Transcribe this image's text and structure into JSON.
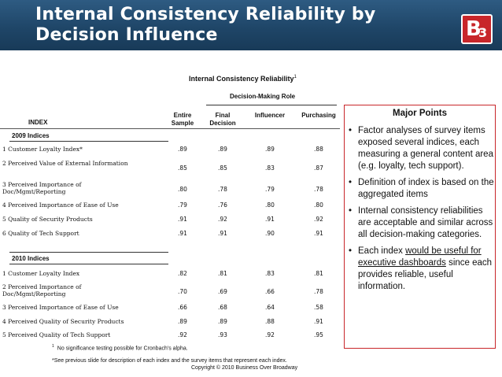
{
  "header": {
    "title_line1": "Internal Consistency Reliability by",
    "title_line2": "Decision Influence",
    "logo_big": "B",
    "logo_small": "3"
  },
  "table": {
    "title": "Internal Consistency Reliability",
    "title_footnote_mark": "1",
    "group_header": "Decision-Making Role",
    "index_header": "INDEX",
    "columns": [
      {
        "line1": "Entire",
        "line2": "Sample"
      },
      {
        "line1": "Final",
        "line2": "Decision"
      },
      {
        "line1": "",
        "line2": "Influencer"
      },
      {
        "line1": "",
        "line2": "Purchasing"
      }
    ],
    "section_2009": "2009 Indices",
    "rows_2009": [
      {
        "label": "1 Customer Loyalty Index*",
        "v": [
          ".89",
          ".89",
          ".89",
          ".88"
        ]
      },
      {
        "label": "2 Perceived Value of External Information",
        "v": [
          ".85",
          ".85",
          ".83",
          ".87"
        ]
      },
      {
        "label": "3 Perceived Importance of Doc/Mgmt/Reporting",
        "v": [
          ".80",
          ".78",
          ".79",
          ".78"
        ]
      },
      {
        "label": "4 Perceived Importance of Ease of Use",
        "v": [
          ".79",
          ".76",
          ".80",
          ".80"
        ]
      },
      {
        "label": "5 Quality of Security Products",
        "v": [
          ".91",
          ".92",
          ".91",
          ".92"
        ]
      },
      {
        "label": "6 Quality of Tech Support",
        "v": [
          ".91",
          ".91",
          ".90",
          ".91"
        ]
      }
    ],
    "section_2010": "2010 Indices",
    "rows_2010": [
      {
        "label": "1 Customer Loyalty Index",
        "v": [
          ".82",
          ".81",
          ".83",
          ".81"
        ]
      },
      {
        "label": "2 Perceived Importance of Doc/Mgmt/Reporting",
        "v": [
          ".70",
          ".69",
          ".66",
          ".78"
        ]
      },
      {
        "label": "3 Perceived Importance of Ease of Use",
        "v": [
          ".66",
          ".68",
          ".64",
          ".58"
        ]
      },
      {
        "label": "4 Perceived Quality of Security Products",
        "v": [
          ".89",
          ".89",
          ".88",
          ".91"
        ]
      },
      {
        "label": "5 Perceived Quality of Tech Support",
        "v": [
          ".92",
          ".93",
          ".92",
          ".95"
        ]
      }
    ]
  },
  "footnotes": {
    "mark": "1",
    "note1": "No significance testing possible for Cronbach's alpha.",
    "note2": "*See previous slide for description of each index and the survey items that represent each index.",
    "copyright": "Copyright © 2010 Business Over Broadway"
  },
  "major_points": {
    "title": "Major Points",
    "bullet": "•",
    "items": [
      {
        "text": "Factor analyses of survey items exposed several indices, each measuring a general content area (e.g. loyalty, tech support)."
      },
      {
        "text": "Definition of index is based on the aggregated items"
      },
      {
        "text": "Internal consistency reliabilities are acceptable and similar across all decision-making categories."
      },
      {
        "pre": "Each index ",
        "underlined": "would be useful for executive dashboards",
        "post": " since each provides reliable, useful information."
      }
    ]
  }
}
